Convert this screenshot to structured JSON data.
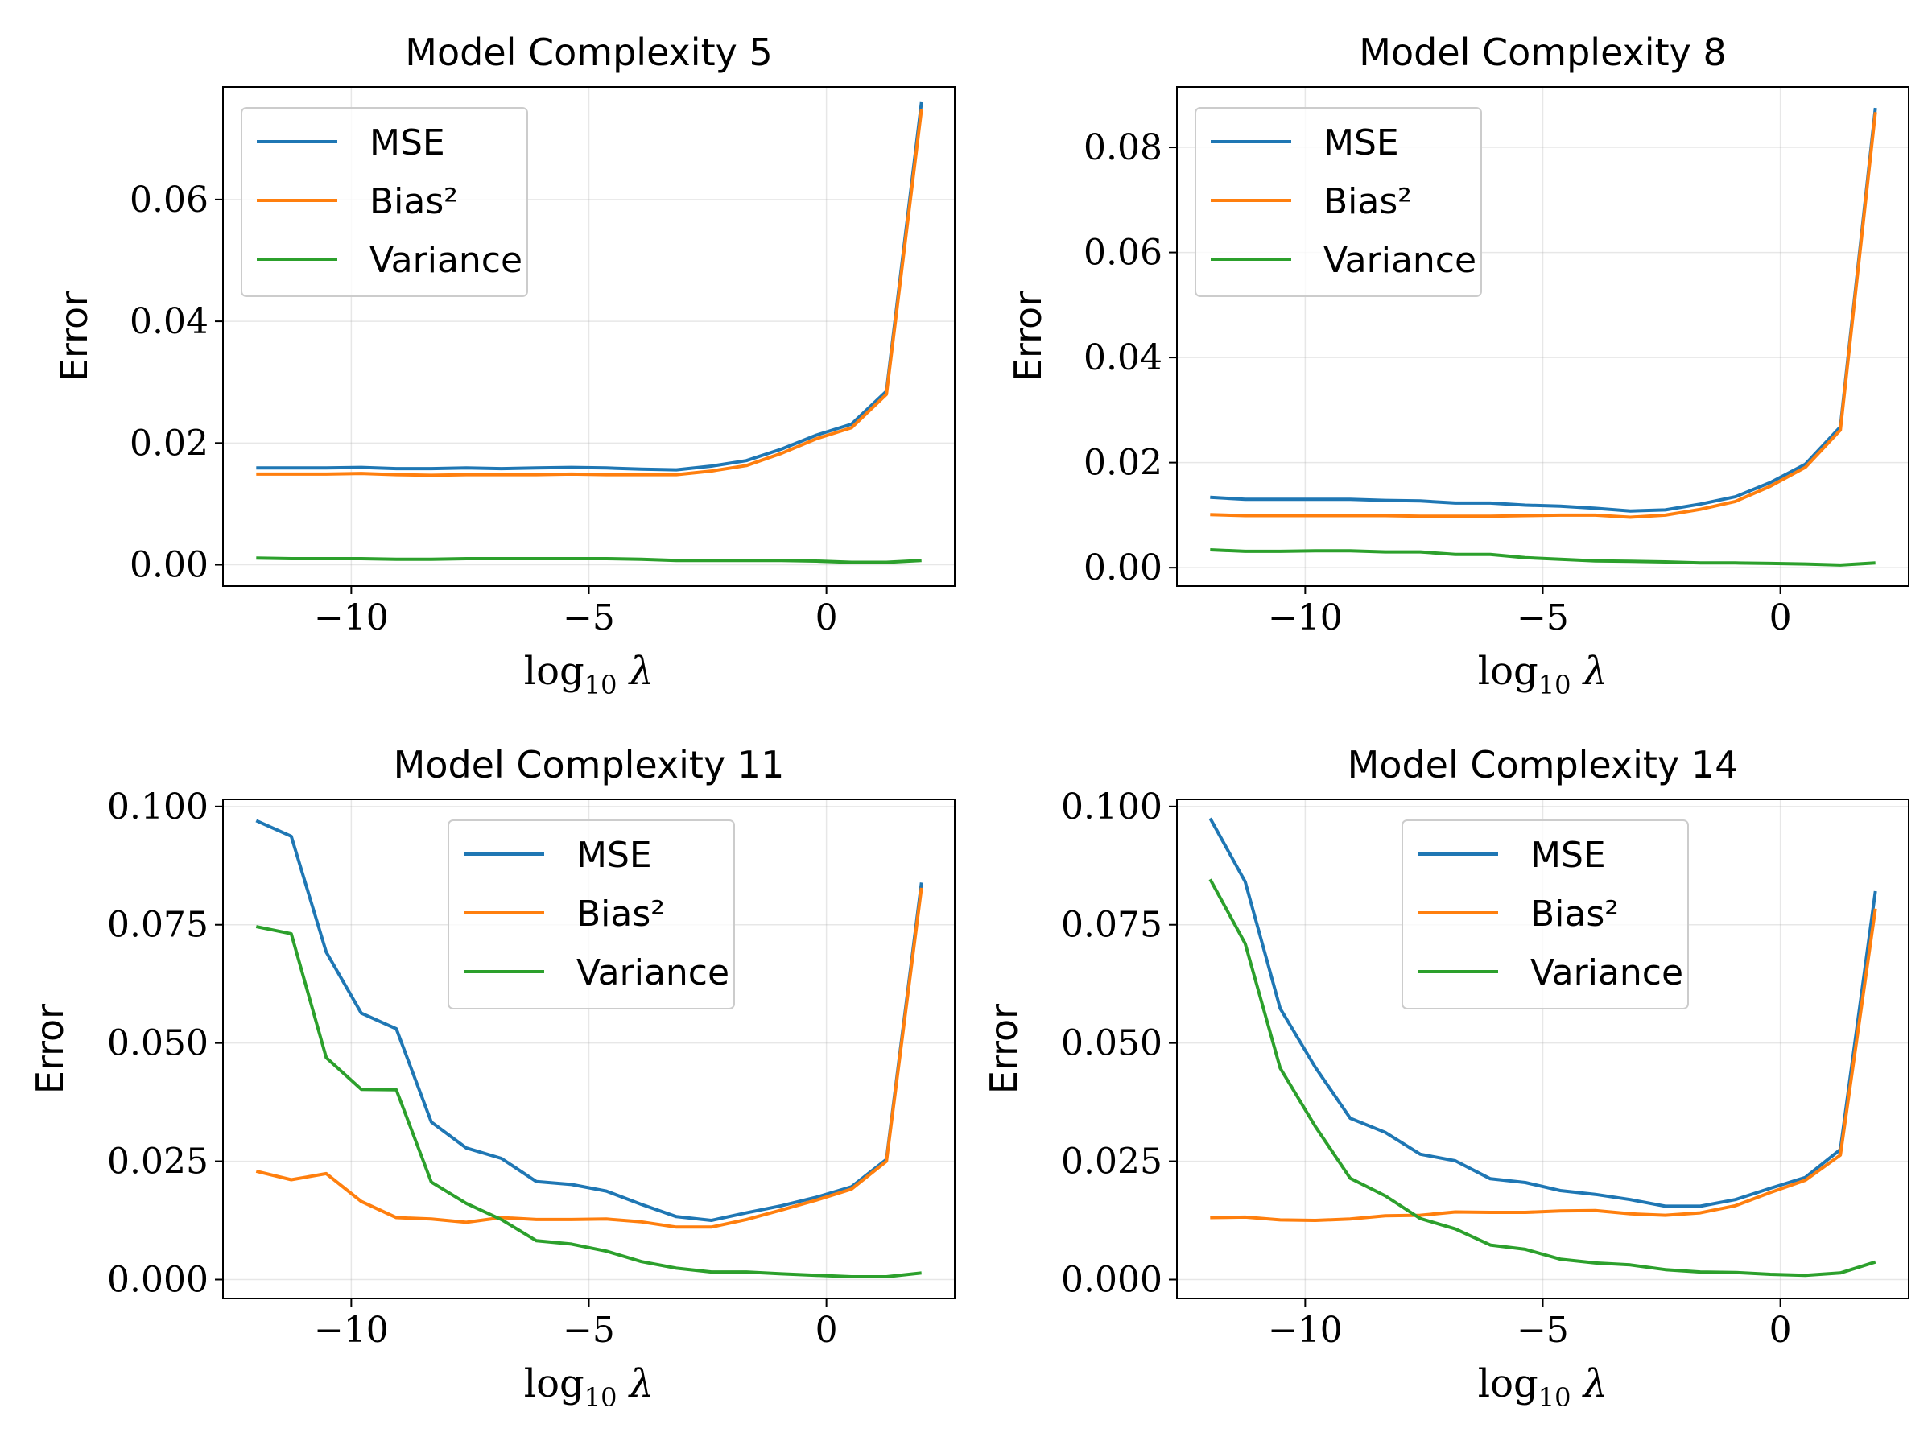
{
  "chart_data": [
    {
      "type": "line",
      "title": "Model Complexity 5",
      "xlabel": "log10 λ",
      "ylabel": "Error",
      "xlim": [
        -12.7,
        2.7
      ],
      "ylim": [
        -0.0035,
        0.0785
      ],
      "xticks": [
        -10,
        -5,
        0
      ],
      "xtick_labels": [
        "−10",
        "−5",
        "0"
      ],
      "yticks": [
        0.0,
        0.02,
        0.04,
        0.06
      ],
      "ytick_labels": [
        "0.00",
        "0.02",
        "0.04",
        "0.06"
      ],
      "grid": true,
      "legend_position": "top-left",
      "x": [
        -12.0,
        -11.263,
        -10.526,
        -9.789,
        -9.053,
        -8.316,
        -7.579,
        -6.842,
        -6.105,
        -5.368,
        -4.632,
        -3.895,
        -3.158,
        -2.421,
        -1.684,
        -0.947,
        -0.211,
        0.526,
        1.263,
        2.0
      ],
      "series": [
        {
          "name": "MSE",
          "color": "#1f77b4",
          "values": [
            0.0159,
            0.0159,
            0.0159,
            0.016,
            0.0158,
            0.0158,
            0.0159,
            0.0158,
            0.0159,
            0.016,
            0.0159,
            0.0157,
            0.0156,
            0.0162,
            0.0171,
            0.019,
            0.0213,
            0.0231,
            0.0285,
            0.076
          ]
        },
        {
          "name": "Bias²",
          "color": "#ff7f0e",
          "values": [
            0.0149,
            0.0149,
            0.0149,
            0.015,
            0.0148,
            0.0147,
            0.0148,
            0.0148,
            0.0148,
            0.0149,
            0.0148,
            0.0148,
            0.0148,
            0.0154,
            0.0163,
            0.0183,
            0.0207,
            0.0225,
            0.028,
            0.0748
          ]
        },
        {
          "name": "Variance",
          "color": "#2ca02c",
          "values": [
            0.0011,
            0.001,
            0.001,
            0.001,
            0.0009,
            0.0009,
            0.001,
            0.001,
            0.001,
            0.001,
            0.001,
            0.0009,
            0.0007,
            0.0007,
            0.0007,
            0.0007,
            0.0006,
            0.0004,
            0.0004,
            0.0007
          ]
        }
      ]
    },
    {
      "type": "line",
      "title": "Model Complexity 8",
      "xlabel": "log10 λ",
      "ylabel": "Error",
      "xlim": [
        -12.7,
        2.7
      ],
      "ylim": [
        -0.0035,
        0.0915
      ],
      "xticks": [
        -10,
        -5,
        0
      ],
      "xtick_labels": [
        "−10",
        "−5",
        "0"
      ],
      "yticks": [
        0.0,
        0.02,
        0.04,
        0.06,
        0.08
      ],
      "ytick_labels": [
        "0.00",
        "0.02",
        "0.04",
        "0.06",
        "0.08"
      ],
      "grid": true,
      "legend_position": "top-left",
      "x": [
        -12.0,
        -11.263,
        -10.526,
        -9.789,
        -9.053,
        -8.316,
        -7.579,
        -6.842,
        -6.105,
        -5.368,
        -4.632,
        -3.895,
        -3.158,
        -2.421,
        -1.684,
        -0.947,
        -0.211,
        0.526,
        1.263,
        2.0
      ],
      "series": [
        {
          "name": "MSE",
          "color": "#1f77b4",
          "values": [
            0.0134,
            0.013,
            0.013,
            0.013,
            0.013,
            0.0128,
            0.0127,
            0.0123,
            0.0123,
            0.0119,
            0.0117,
            0.0113,
            0.0108,
            0.011,
            0.0121,
            0.0135,
            0.0162,
            0.0197,
            0.0268,
            0.0875
          ]
        },
        {
          "name": "Bias²",
          "color": "#ff7f0e",
          "values": [
            0.0101,
            0.0099,
            0.0099,
            0.0099,
            0.0099,
            0.0099,
            0.0098,
            0.0098,
            0.0098,
            0.0099,
            0.01,
            0.01,
            0.0096,
            0.01,
            0.0111,
            0.0126,
            0.0155,
            0.0191,
            0.0262,
            0.0867
          ]
        },
        {
          "name": "Variance",
          "color": "#2ca02c",
          "values": [
            0.0034,
            0.0031,
            0.0031,
            0.0032,
            0.0032,
            0.003,
            0.003,
            0.0025,
            0.0025,
            0.0019,
            0.0016,
            0.0013,
            0.0012,
            0.0011,
            0.0009,
            0.0009,
            0.0008,
            0.0007,
            0.0005,
            0.0009
          ]
        }
      ]
    },
    {
      "type": "line",
      "title": "Model Complexity 11",
      "xlabel": "log10 λ",
      "ylabel": "Error",
      "xlim": [
        -12.7,
        2.7
      ],
      "ylim": [
        -0.004,
        0.1015
      ],
      "xticks": [
        -10,
        -5,
        0
      ],
      "xtick_labels": [
        "−10",
        "−5",
        "0"
      ],
      "yticks": [
        0.0,
        0.025,
        0.05,
        0.075,
        0.1
      ],
      "ytick_labels": [
        "0.000",
        "0.025",
        "0.050",
        "0.075",
        "0.100"
      ],
      "grid": true,
      "legend_position": "upper center",
      "x": [
        -12.0,
        -11.263,
        -10.526,
        -9.789,
        -9.053,
        -8.316,
        -7.579,
        -6.842,
        -6.105,
        -5.368,
        -4.632,
        -3.895,
        -3.158,
        -2.421,
        -1.684,
        -0.947,
        -0.211,
        0.526,
        1.263,
        2.0
      ],
      "series": [
        {
          "name": "MSE",
          "color": "#1f77b4",
          "values": [
            0.097,
            0.0937,
            0.0692,
            0.0563,
            0.053,
            0.0333,
            0.0278,
            0.0256,
            0.0207,
            0.0201,
            0.0187,
            0.0159,
            0.0133,
            0.0125,
            0.0141,
            0.0156,
            0.0174,
            0.0196,
            0.0254,
            0.0839
          ]
        },
        {
          "name": "Bias²",
          "color": "#ff7f0e",
          "values": [
            0.0229,
            0.0211,
            0.0224,
            0.0165,
            0.0131,
            0.0128,
            0.0121,
            0.0131,
            0.0127,
            0.0127,
            0.0128,
            0.0122,
            0.0111,
            0.0111,
            0.0127,
            0.0147,
            0.0168,
            0.0191,
            0.025,
            0.0828
          ]
        },
        {
          "name": "Variance",
          "color": "#2ca02c",
          "values": [
            0.0746,
            0.0731,
            0.0469,
            0.0402,
            0.0401,
            0.0206,
            0.0161,
            0.0127,
            0.0082,
            0.0075,
            0.006,
            0.0038,
            0.0024,
            0.0016,
            0.0016,
            0.0012,
            0.0009,
            0.0006,
            0.0006,
            0.0014
          ]
        }
      ]
    },
    {
      "type": "line",
      "title": "Model Complexity 14",
      "xlabel": "log10 λ",
      "ylabel": "Error",
      "xlim": [
        -12.7,
        2.7
      ],
      "ylim": [
        -0.004,
        0.1015
      ],
      "xticks": [
        -10,
        -5,
        0
      ],
      "xtick_labels": [
        "−10",
        "−5",
        "0"
      ],
      "yticks": [
        0.0,
        0.025,
        0.05,
        0.075,
        0.1
      ],
      "ytick_labels": [
        "0.000",
        "0.025",
        "0.050",
        "0.075",
        "0.100"
      ],
      "grid": true,
      "legend_position": "upper center",
      "x": [
        -12.0,
        -11.263,
        -10.526,
        -9.789,
        -9.053,
        -8.316,
        -7.579,
        -6.842,
        -6.105,
        -5.368,
        -4.632,
        -3.895,
        -3.158,
        -2.421,
        -1.684,
        -0.947,
        -0.211,
        0.526,
        1.263,
        2.0
      ],
      "series": [
        {
          "name": "MSE",
          "color": "#1f77b4",
          "values": [
            0.0975,
            0.0841,
            0.0573,
            0.0449,
            0.0341,
            0.0311,
            0.0265,
            0.0251,
            0.0213,
            0.0205,
            0.0188,
            0.018,
            0.0169,
            0.0155,
            0.0155,
            0.0169,
            0.0193,
            0.0216,
            0.0275,
            0.0821
          ]
        },
        {
          "name": "Bias²",
          "color": "#ff7f0e",
          "values": [
            0.0131,
            0.0132,
            0.0126,
            0.0125,
            0.0128,
            0.0135,
            0.0136,
            0.0143,
            0.0142,
            0.0142,
            0.0145,
            0.0146,
            0.0139,
            0.0136,
            0.0141,
            0.0156,
            0.0184,
            0.021,
            0.0263,
            0.0784
          ]
        },
        {
          "name": "Variance",
          "color": "#2ca02c",
          "values": [
            0.0846,
            0.071,
            0.0447,
            0.0324,
            0.0214,
            0.0177,
            0.0129,
            0.0107,
            0.0073,
            0.0064,
            0.0043,
            0.0035,
            0.0031,
            0.0021,
            0.0016,
            0.0015,
            0.0011,
            0.0009,
            0.0014,
            0.0037
          ]
        }
      ]
    }
  ]
}
